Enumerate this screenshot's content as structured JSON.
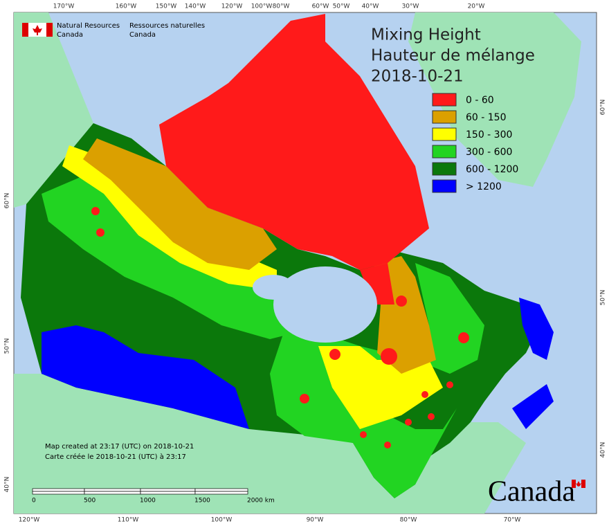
{
  "header": {
    "agency_en": [
      "Natural Resources",
      "Canada"
    ],
    "agency_fr": [
      "Ressources naturelles",
      "Canada"
    ]
  },
  "title": [
    "Mixing Height",
    "Hauteur de mélange",
    "2018-10-21"
  ],
  "legend": [
    {
      "label": "0 - 60",
      "color": "#ff1a1a"
    },
    {
      "label": "60 - 150",
      "color": "#dba000"
    },
    {
      "label": "150 - 300",
      "color": "#ffff00"
    },
    {
      "label": "300 - 600",
      "color": "#22d422"
    },
    {
      "label": "600 - 1200",
      "color": "#0b780b"
    },
    {
      "label": "> 1200",
      "color": "#0000ff"
    }
  ],
  "longitudes_top": [
    "170°W",
    "160°W",
    "150°W",
    "140°W",
    "120°W",
    "100°W",
    "80°W",
    "60°W",
    "50°W",
    "40°W",
    "30°W",
    "20°W"
  ],
  "longitudes_bottom": [
    "120°W",
    "110°W",
    "100°W",
    "90°W",
    "80°W",
    "70°W"
  ],
  "latitudes_left": [
    "60°N",
    "50°N",
    "40°N"
  ],
  "latitudes_right": [
    "60°N",
    "50°N",
    "40°N"
  ],
  "footnote": [
    "Map created at 23:17 (UTC) on 2018-10-21",
    "Carte créée le 2018-10-21 (UTC) à 23:17"
  ],
  "scale_labels": [
    "0",
    "500",
    "1000",
    "1500",
    "2000 km"
  ],
  "wordmark": "Canada"
}
